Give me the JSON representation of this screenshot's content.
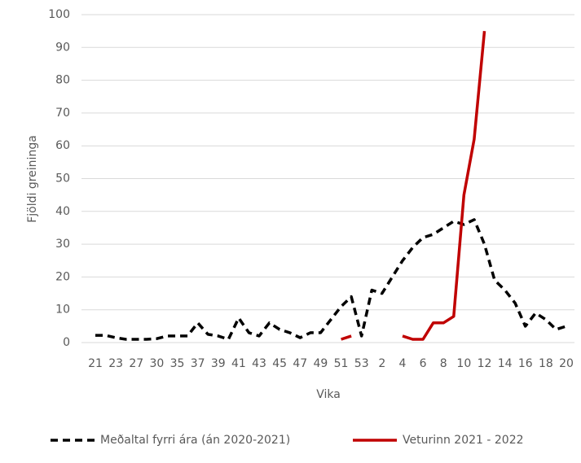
{
  "chart_data": {
    "type": "line",
    "x_label": "Vika",
    "y_label": "Fjöldi greininga",
    "categories": [
      "21",
      null,
      "23",
      null,
      "27",
      null,
      "30",
      null,
      "35",
      null,
      "37",
      null,
      "39",
      null,
      "41",
      null,
      "43",
      null,
      "45",
      null,
      "47",
      null,
      "49",
      null,
      "51",
      null,
      "53",
      null,
      "2",
      null,
      "4",
      null,
      "6",
      null,
      "8",
      null,
      "10",
      null,
      "12",
      null,
      "14",
      null,
      "16",
      null,
      "18",
      null,
      "20"
    ],
    "series": [
      {
        "name": "Meðaltal fyrri ára (án 2020-2021)",
        "color": "#000000",
        "dash": true,
        "values": [
          2.2,
          2.2,
          1.5,
          1,
          1,
          1,
          1.2,
          2,
          2,
          2,
          6,
          2.5,
          2,
          1,
          7.5,
          3,
          2,
          6,
          4,
          3,
          1.5,
          3,
          3,
          7,
          11,
          14,
          2,
          16,
          15,
          20,
          25,
          29,
          32,
          33,
          35,
          37,
          36,
          37.5,
          30,
          19,
          16,
          12,
          5,
          9,
          7,
          4,
          5
        ]
      },
      {
        "name": "Veturinn 2021 - 2022",
        "color": "#c00000",
        "dash": false,
        "values": [
          null,
          null,
          null,
          null,
          null,
          null,
          null,
          null,
          null,
          null,
          null,
          null,
          null,
          null,
          null,
          null,
          null,
          null,
          null,
          null,
          null,
          null,
          null,
          null,
          1,
          2,
          null,
          null,
          null,
          null,
          2,
          1,
          1,
          6,
          6,
          8,
          45,
          62,
          95,
          null,
          null,
          null,
          null,
          null,
          null,
          null,
          null
        ]
      }
    ],
    "ylim": [
      0,
      100
    ],
    "yticks": [
      0,
      10,
      20,
      30,
      40,
      50,
      60,
      70,
      80,
      90,
      100
    ],
    "grid": true,
    "legend": "bottom"
  }
}
